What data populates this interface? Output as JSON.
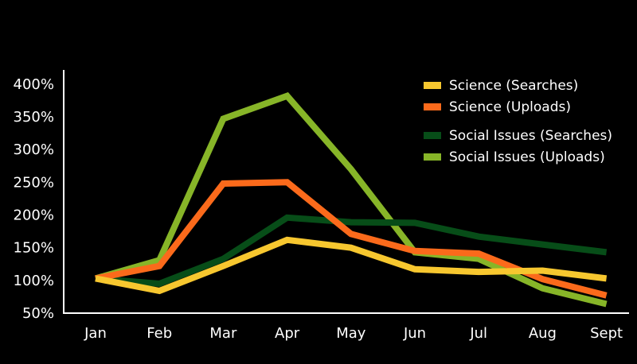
{
  "chart_data": {
    "type": "line",
    "title": "",
    "xlabel": "",
    "ylabel": "",
    "categories": [
      "Jan",
      "Feb",
      "Mar",
      "Apr",
      "May",
      "Jun",
      "Jul",
      "Aug",
      "Sept"
    ],
    "yticks": [
      50,
      100,
      150,
      200,
      250,
      300,
      350,
      400
    ],
    "ytick_labels": [
      "50%",
      "100%",
      "150%",
      "200%",
      "250%",
      "300%",
      "350%",
      "400%"
    ],
    "ylim": [
      50,
      400
    ],
    "unit": "%",
    "grid": false,
    "legend_position": "top-right",
    "series": [
      {
        "name": "Science (Searches)",
        "color": "#f7c72f",
        "values": [
          103,
          84,
          122,
          162,
          150,
          117,
          113,
          115,
          103
        ]
      },
      {
        "name": "Science (Uploads)",
        "color": "#fb6a1b",
        "values": [
          103,
          122,
          248,
          250,
          171,
          145,
          141,
          102,
          77
        ]
      },
      {
        "name": "Social Issues (Searches)",
        "color": "#074d18",
        "values": [
          103,
          95,
          133,
          196,
          189,
          188,
          167,
          155,
          143
        ]
      },
      {
        "name": "Social Issues (Uploads)",
        "color": "#87b528",
        "values": [
          103,
          131,
          347,
          382,
          270,
          143,
          133,
          88,
          64
        ]
      }
    ]
  }
}
